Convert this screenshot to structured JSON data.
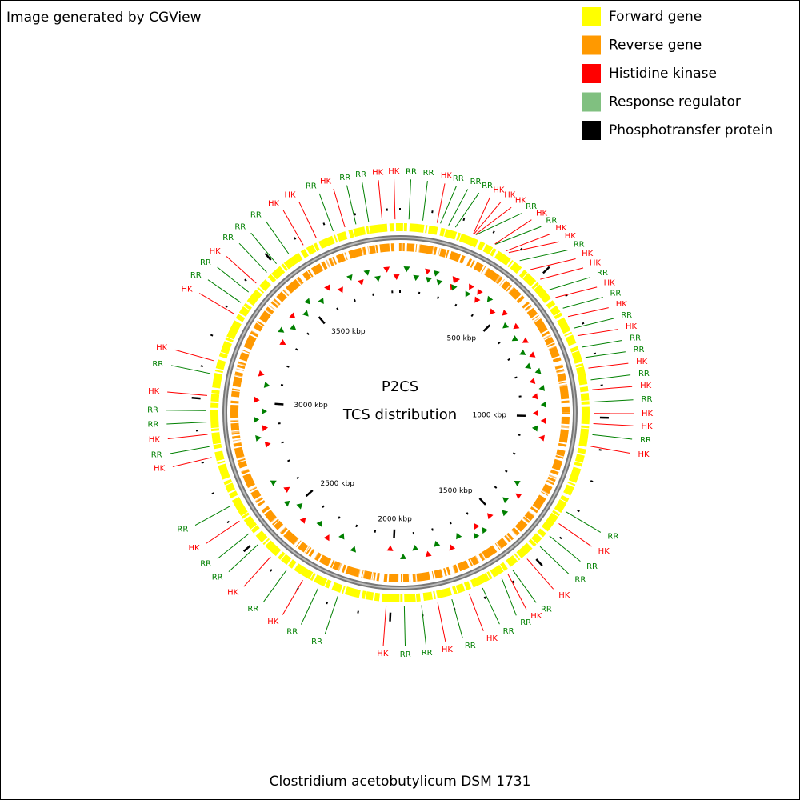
{
  "header": {
    "note": "Image generated by CGView"
  },
  "legend": [
    {
      "label": "Forward gene",
      "color": "#ffff00"
    },
    {
      "label": "Reverse gene",
      "color": "#ff9900"
    },
    {
      "label": "Histidine kinase",
      "color": "#ff0000"
    },
    {
      "label": "Response regulator",
      "color": "#80c080"
    },
    {
      "label": "Phosphotransfer protein",
      "color": "#000000"
    }
  ],
  "map": {
    "title": "P2CS",
    "subtitle": "TCS distribution",
    "xlim": [
      0,
      3940
    ],
    "xticks": [
      {
        "value": 500,
        "label": "500 kbp"
      },
      {
        "value": 1000,
        "label": "1000 kbp"
      },
      {
        "value": 1500,
        "label": "1500 kbp"
      },
      {
        "value": 2000,
        "label": "2000 kbp"
      },
      {
        "value": 2500,
        "label": "2500 kbp"
      },
      {
        "value": 3000,
        "label": "3000 kbp"
      },
      {
        "value": 3500,
        "label": "3500 kbp"
      }
    ],
    "features": [
      {
        "label": "RR",
        "position": 29,
        "color": "#008000"
      },
      {
        "label": "RR",
        "position": 74,
        "color": "#008000"
      },
      {
        "label": "HK",
        "position": 121,
        "color": "#ff0000"
      },
      {
        "label": "RR",
        "position": 132,
        "color": "#008000"
      },
      {
        "label": "RR",
        "position": 159,
        "color": "#008000"
      },
      {
        "label": "RR",
        "position": 182,
        "color": "#008000"
      },
      {
        "label": "HK",
        "position": 244,
        "color": "#ff0000"
      },
      {
        "label": "HK",
        "position": 246,
        "color": "#ff0000"
      },
      {
        "label": "HK",
        "position": 251,
        "color": "#ff0000"
      },
      {
        "label": "RR",
        "position": 253,
        "color": "#008000"
      },
      {
        "label": "HK",
        "position": 321,
        "color": "#ff0000"
      },
      {
        "label": "RR",
        "position": 323,
        "color": "#008000"
      },
      {
        "label": "HK",
        "position": 364,
        "color": "#ff0000"
      },
      {
        "label": "HK",
        "position": 374,
        "color": "#ff0000"
      },
      {
        "label": "RR",
        "position": 418,
        "color": "#008000"
      },
      {
        "label": "HK",
        "position": 463,
        "color": "#ff0000"
      },
      {
        "label": "HK",
        "position": 508,
        "color": "#ff0000"
      },
      {
        "label": "RR",
        "position": 553,
        "color": "#008000"
      },
      {
        "label": "HK",
        "position": 585,
        "color": "#ff0000"
      },
      {
        "label": "RR",
        "position": 627,
        "color": "#008000"
      },
      {
        "label": "HK",
        "position": 659,
        "color": "#ff0000"
      },
      {
        "label": "RR",
        "position": 701,
        "color": "#008000"
      },
      {
        "label": "HK",
        "position": 728,
        "color": "#ff0000"
      },
      {
        "label": "RR",
        "position": 768,
        "color": "#008000"
      },
      {
        "label": "RR",
        "position": 803,
        "color": "#008000"
      },
      {
        "label": "HK",
        "position": 839,
        "color": "#ff0000"
      },
      {
        "label": "RR",
        "position": 878,
        "color": "#008000"
      },
      {
        "label": "HK",
        "position": 910,
        "color": "#ff0000"
      },
      {
        "label": "RR",
        "position": 950,
        "color": "#008000"
      },
      {
        "label": "HK",
        "position": 987,
        "color": "#ff0000"
      },
      {
        "label": "HK",
        "position": 1020,
        "color": "#ff0000"
      },
      {
        "label": "RR",
        "position": 1056,
        "color": "#008000"
      },
      {
        "label": "HK",
        "position": 1094,
        "color": "#ff0000"
      },
      {
        "label": "RR",
        "position": 1322,
        "color": "#008000"
      },
      {
        "label": "HK",
        "position": 1367,
        "color": "#ff0000"
      },
      {
        "label": "RR",
        "position": 1417,
        "color": "#008000"
      },
      {
        "label": "RR",
        "position": 1463,
        "color": "#008000"
      },
      {
        "label": "HK",
        "position": 1521,
        "color": "#ff0000"
      },
      {
        "label": "RR",
        "position": 1580,
        "color": "#008000"
      },
      {
        "label": "HK",
        "position": 1600,
        "color": "#ff0000"
      },
      {
        "label": "RR",
        "position": 1624,
        "color": "#008000"
      },
      {
        "label": "RR",
        "position": 1694,
        "color": "#008000"
      },
      {
        "label": "HK",
        "position": 1741,
        "color": "#ff0000"
      },
      {
        "label": "RR",
        "position": 1800,
        "color": "#008000"
      },
      {
        "label": "HK",
        "position": 1847,
        "color": "#ff0000"
      },
      {
        "label": "RR",
        "position": 1900,
        "color": "#008000"
      },
      {
        "label": "RR",
        "position": 1956,
        "color": "#008000"
      },
      {
        "label": "HK",
        "position": 2015,
        "color": "#ff0000"
      },
      {
        "label": "RR",
        "position": 2175,
        "color": "#008000"
      },
      {
        "label": "RR",
        "position": 2244,
        "color": "#008000"
      },
      {
        "label": "HK",
        "position": 2300,
        "color": "#ff0000"
      },
      {
        "label": "RR",
        "position": 2362,
        "color": "#008000"
      },
      {
        "label": "HK",
        "position": 2429,
        "color": "#ff0000"
      },
      {
        "label": "RR",
        "position": 2486,
        "color": "#008000"
      },
      {
        "label": "RR",
        "position": 2532,
        "color": "#008000"
      },
      {
        "label": "HK",
        "position": 2583,
        "color": "#ff0000"
      },
      {
        "label": "RR",
        "position": 2640,
        "color": "#008000"
      },
      {
        "label": "HK",
        "position": 2809,
        "color": "#ff0000"
      },
      {
        "label": "RR",
        "position": 2845,
        "color": "#008000"
      },
      {
        "label": "HK",
        "position": 2885,
        "color": "#ff0000"
      },
      {
        "label": "RR",
        "position": 2925,
        "color": "#008000"
      },
      {
        "label": "RR",
        "position": 2962,
        "color": "#008000"
      },
      {
        "label": "HK",
        "position": 3011,
        "color": "#ff0000"
      },
      {
        "label": "RR",
        "position": 3083,
        "color": "#008000"
      },
      {
        "label": "HK",
        "position": 3126,
        "color": "#ff0000"
      },
      {
        "label": "HK",
        "position": 3292,
        "color": "#ff0000"
      },
      {
        "label": "RR",
        "position": 3335,
        "color": "#008000"
      },
      {
        "label": "RR",
        "position": 3377,
        "color": "#008000"
      },
      {
        "label": "HK",
        "position": 3415,
        "color": "#ff0000"
      },
      {
        "label": "RR",
        "position": 3464,
        "color": "#008000"
      },
      {
        "label": "RR",
        "position": 3506,
        "color": "#008000"
      },
      {
        "label": "RR",
        "position": 3557,
        "color": "#008000"
      },
      {
        "label": "HK",
        "position": 3612,
        "color": "#ff0000"
      },
      {
        "label": "HK",
        "position": 3660,
        "color": "#ff0000"
      },
      {
        "label": "RR",
        "position": 3719,
        "color": "#008000"
      },
      {
        "label": "HK",
        "position": 3759,
        "color": "#ff0000"
      },
      {
        "label": "RR",
        "position": 3796,
        "color": "#008000"
      },
      {
        "label": "RR",
        "position": 3838,
        "color": "#008000"
      },
      {
        "label": "HK",
        "position": 3882,
        "color": "#ff0000"
      },
      {
        "label": "HK",
        "position": 3924,
        "color": "#ff0000"
      }
    ]
  },
  "footer": {
    "organism": "Clostridium acetobutylicum DSM 1731"
  }
}
